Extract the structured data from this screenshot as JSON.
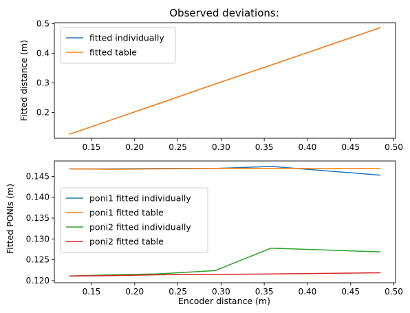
{
  "chart_data": [
    {
      "type": "line",
      "title": "Observed deviations:",
      "xlabel": "",
      "ylabel": "Fitted distance (m)",
      "xlim": [
        0.107,
        0.502
      ],
      "ylim": [
        0.113,
        0.503
      ],
      "xticks": [
        0.15,
        0.2,
        0.25,
        0.3,
        0.35,
        0.4,
        0.45,
        0.5
      ],
      "xtick_labels": [
        "0.15",
        "0.20",
        "0.25",
        "0.30",
        "0.35",
        "0.40",
        "0.45",
        "0.50"
      ],
      "yticks": [
        0.2,
        0.3,
        0.4,
        0.5
      ],
      "ytick_labels": [
        "0.2",
        "0.3",
        "0.4",
        "0.5"
      ],
      "legend_position": "upper-left",
      "series": [
        {
          "name": "fitted individually",
          "color": "#1f77b4",
          "x": [
            0.125,
            0.172,
            0.225,
            0.293,
            0.358,
            0.484
          ],
          "y": [
            0.127,
            0.174,
            0.227,
            0.296,
            0.36,
            0.486
          ]
        },
        {
          "name": "fitted table",
          "color": "#ff7f0e",
          "x": [
            0.125,
            0.172,
            0.225,
            0.293,
            0.358,
            0.484
          ],
          "y": [
            0.127,
            0.174,
            0.227,
            0.296,
            0.36,
            0.486
          ]
        }
      ]
    },
    {
      "type": "line",
      "title": "",
      "xlabel": "Encoder distance (m)",
      "ylabel": "Fitted PONIs (m)",
      "xlim": [
        0.107,
        0.502
      ],
      "ylim": [
        0.1195,
        0.1487
      ],
      "xticks": [
        0.15,
        0.2,
        0.25,
        0.3,
        0.35,
        0.4,
        0.45,
        0.5
      ],
      "xtick_labels": [
        "0.15",
        "0.20",
        "0.25",
        "0.30",
        "0.35",
        "0.40",
        "0.45",
        "0.50"
      ],
      "yticks": [
        0.12,
        0.125,
        0.13,
        0.135,
        0.14,
        0.145
      ],
      "ytick_labels": [
        "0.120",
        "0.125",
        "0.130",
        "0.135",
        "0.140",
        "0.145"
      ],
      "legend_position": "center-left",
      "series": [
        {
          "name": "poni1 fitted individually",
          "color": "#1f77b4",
          "x": [
            0.125,
            0.172,
            0.225,
            0.293,
            0.358,
            0.484
          ],
          "y": [
            0.1468,
            0.1468,
            0.1469,
            0.1469,
            0.1474,
            0.1453
          ]
        },
        {
          "name": "poni1 fitted table",
          "color": "#ff7f0e",
          "x": [
            0.125,
            0.172,
            0.225,
            0.293,
            0.358,
            0.484
          ],
          "y": [
            0.1468,
            0.1467,
            0.1468,
            0.1469,
            0.1469,
            0.1469
          ]
        },
        {
          "name": "poni2 fitted individually",
          "color": "#2ca02c",
          "x": [
            0.125,
            0.172,
            0.225,
            0.293,
            0.358,
            0.484
          ],
          "y": [
            0.1211,
            0.1214,
            0.1216,
            0.1224,
            0.1278,
            0.1269
          ]
        },
        {
          "name": "poni2 fitted table",
          "color": "#d62728",
          "x": [
            0.125,
            0.172,
            0.225,
            0.293,
            0.358,
            0.484
          ],
          "y": [
            0.1211,
            0.1212,
            0.1214,
            0.1215,
            0.1216,
            0.1219
          ]
        }
      ]
    }
  ]
}
